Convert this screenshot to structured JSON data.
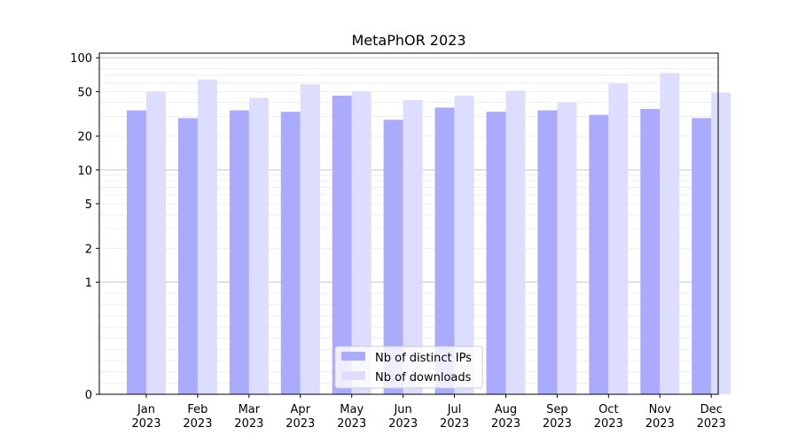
{
  "chart_data": {
    "type": "bar",
    "title": "MetaPhOR 2023",
    "scale": "symlog",
    "ylim": [
      0,
      110
    ],
    "yticks": [
      0,
      1,
      2,
      5,
      10,
      20,
      50,
      100
    ],
    "categories": [
      "Jan\n2023",
      "Feb\n2023",
      "Mar\n2023",
      "Apr\n2023",
      "May\n2023",
      "Jun\n2023",
      "Jul\n2023",
      "Aug\n2023",
      "Sep\n2023",
      "Oct\n2023",
      "Nov\n2023",
      "Dec\n2023"
    ],
    "series": [
      {
        "name": "Nb of distinct IPs",
        "color": "#aaaaff",
        "values": [
          34,
          29,
          34,
          33,
          46,
          28,
          36,
          33,
          34,
          31,
          35,
          29
        ]
      },
      {
        "name": "Nb of downloads",
        "color": "#ddddff",
        "values": [
          50,
          64,
          44,
          58,
          50,
          42,
          46,
          51,
          40,
          59,
          73,
          49
        ]
      }
    ],
    "legend_position": "bottom-center",
    "grid": "horizontal, major and minor"
  }
}
